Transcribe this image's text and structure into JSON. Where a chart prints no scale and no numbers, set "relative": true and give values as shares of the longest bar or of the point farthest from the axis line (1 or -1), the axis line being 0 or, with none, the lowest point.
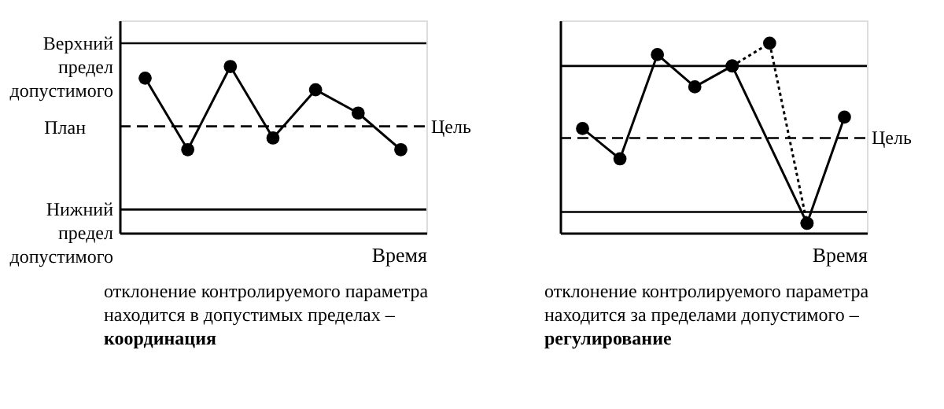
{
  "chart_data": [
    {
      "type": "line",
      "relative": true,
      "xlabel": "Время",
      "marker": "circle",
      "legend": false,
      "grid": false,
      "tick_labels": false,
      "categories": [
        null,
        null,
        null,
        null,
        null,
        null,
        null
      ],
      "series": [
        {
          "color": "#000000",
          "line_style": "solid",
          "values": [
            0.93,
            0.5,
            1,
            0.57,
            0.86,
            0.72,
            0.5
          ]
        }
      ],
      "ref_lines": [
        {
          "axis": "y",
          "value": 1.14,
          "label": "Верхний предел допустимого",
          "color": "#000000",
          "line_style": "solid"
        },
        {
          "axis": "y",
          "value": 0.64,
          "label": "Цель",
          "color": "#000000",
          "line_style": "dashed"
        },
        {
          "axis": "y",
          "value": 0.14,
          "label": "Нижний предел допустимого",
          "color": "#000000",
          "line_style": "solid"
        }
      ],
      "ylabel": "План",
      "annotations": [
        "отклонение контролируемого параметра",
        "находится в допустимых пределах  –",
        "координация"
      ]
    },
    {
      "type": "line",
      "relative": true,
      "xlabel": "Время",
      "marker": "circle",
      "legend": false,
      "grid": false,
      "tick_labels": false,
      "categories": [
        null,
        null,
        null,
        null,
        null,
        null,
        null,
        null
      ],
      "series": [
        {
          "color": "#000000",
          "line_style": "solid",
          "values": [
            0.55,
            0.39,
            0.94,
            0.77,
            0.88,
            null,
            0.05,
            0.61
          ]
        },
        {
          "color": "#000000",
          "line_style": "dotted",
          "values": [
            null,
            null,
            null,
            null,
            0.88,
            1,
            0.05,
            null
          ]
        }
      ],
      "ref_lines": [
        {
          "axis": "y",
          "value": 0.88,
          "color": "#000000",
          "line_style": "solid"
        },
        {
          "axis": "y",
          "value": 0.5,
          "label": "Цель",
          "color": "#000000",
          "line_style": "dashed"
        },
        {
          "axis": "y",
          "value": 0.11,
          "color": "#000000",
          "line_style": "solid"
        }
      ],
      "annotations": [
        "отклонение контролируемого параметра",
        "находится за пределами допустимого –",
        "регулирование"
      ]
    }
  ]
}
